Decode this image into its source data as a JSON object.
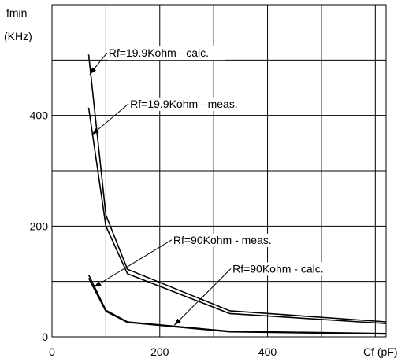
{
  "chart_data": {
    "type": "line",
    "xlabel": "Cf (pF)",
    "ylabel_line1": "fmin",
    "ylabel_line2": "(KHz)",
    "xlim": [
      0,
      620
    ],
    "ylim": [
      0,
      600
    ],
    "x_ticks": [
      0,
      200,
      400
    ],
    "x_tick_labels": [
      "0",
      "200",
      "400"
    ],
    "y_ticks": [
      0,
      200,
      400
    ],
    "y_tick_labels": [
      "0",
      "200",
      "400"
    ],
    "grid": true,
    "series": [
      {
        "name": "Rf=19.9Kohm - calc.",
        "x": [
          68,
          100,
          140,
          330,
          620
        ],
        "y": [
          510,
          220,
          122,
          47,
          27
        ]
      },
      {
        "name": "Rf=19.9Kohm - meas.",
        "x": [
          68,
          100,
          140,
          330,
          620
        ],
        "y": [
          414,
          200,
          114,
          42,
          24
        ]
      },
      {
        "name": "Rf=90Kohm - meas.",
        "x": [
          68,
          100,
          140,
          330,
          620
        ],
        "y": [
          112,
          48,
          27,
          10,
          6
        ]
      },
      {
        "name": "Rf=90Kohm - calc.",
        "x": [
          68,
          100,
          140,
          330,
          620
        ],
        "y": [
          106,
          46,
          26,
          9,
          5
        ]
      }
    ],
    "annotations": [
      {
        "text": "Rf=19.9Kohm - calc.",
        "label_at": [
          105,
          506
        ],
        "arrow_to": [
          70,
          474
        ]
      },
      {
        "text": "Rf=19.9Kohm - meas.",
        "label_at": [
          145,
          414
        ],
        "arrow_to": [
          74,
          365
        ]
      },
      {
        "text": "Rf=90Kohm - meas.",
        "label_at": [
          225,
          168
        ],
        "arrow_to": [
          78,
          90
        ]
      },
      {
        "text": "Rf=90Kohm - calc.",
        "label_at": [
          335,
          116
        ],
        "arrow_to": [
          227,
          21
        ]
      }
    ]
  }
}
